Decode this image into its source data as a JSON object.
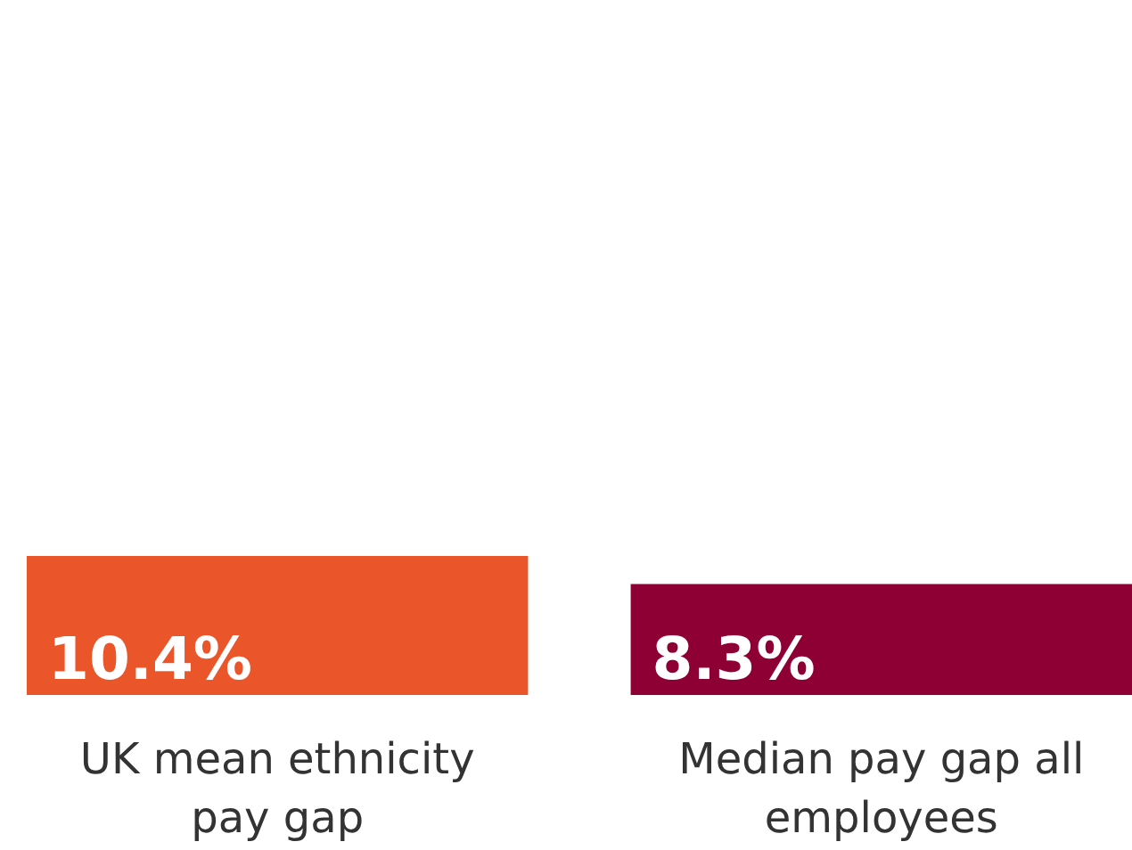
{
  "chart_data": {
    "type": "bar",
    "categories": [
      "UK mean ethnicity pay gap",
      "Median pay gap all employees"
    ],
    "values": [
      10.4,
      8.3
    ],
    "colors": [
      "#ea5529",
      "#8e0033"
    ],
    "value_labels": [
      "10.4%",
      "8.3%"
    ]
  }
}
